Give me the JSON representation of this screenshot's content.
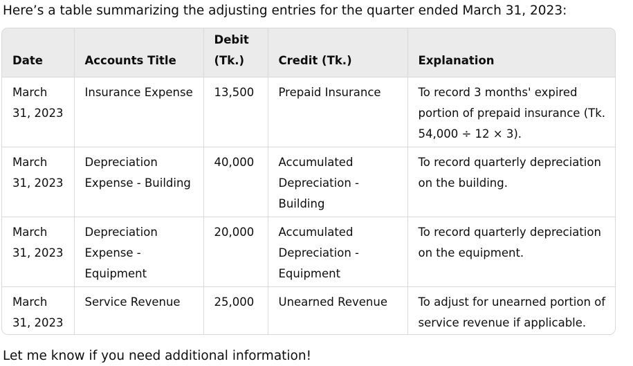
{
  "intro": "Here’s a table summarizing the adjusting entries for the quarter ended March 31, 2023:",
  "table": {
    "headers": [
      "Date",
      "Accounts Title",
      "Debit (Tk.)",
      "Credit (Tk.)",
      "Explanation"
    ],
    "rows": [
      [
        "March 31, 2023",
        "Insurance Expense",
        "13,500",
        "Prepaid Insurance",
        "To record 3 months' expired portion of prepaid insurance (Tk. 54,000 ÷ 12 × 3)."
      ],
      [
        "March 31, 2023",
        "Depreciation Expense - Building",
        "40,000",
        "Accumulated Depreciation - Building",
        "To record quarterly depreciation on the building."
      ],
      [
        "March 31, 2023",
        "Depreciation Expense - Equipment",
        "20,000",
        "Accumulated Depreciation - Equipment",
        "To record quarterly depreciation on the equipment."
      ],
      [
        "March 31, 2023",
        "Service Revenue",
        "25,000",
        "Unearned Revenue",
        "To adjust for unearned portion of service revenue if applicable."
      ]
    ]
  },
  "outro": "Let me know if you need additional information!"
}
